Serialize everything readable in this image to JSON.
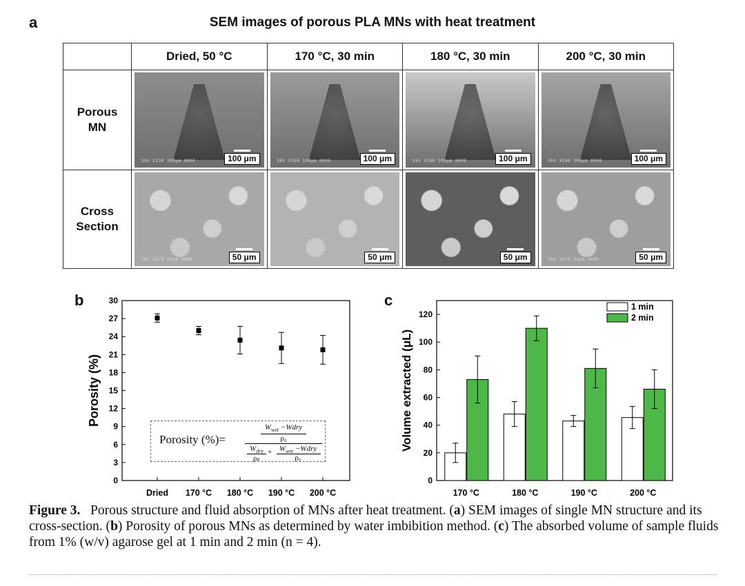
{
  "panel_a": {
    "letter": "a",
    "title": "SEM images of porous PLA MNs with heat treatment",
    "columns": [
      "Dried, 50 °C",
      "170 °C, 30 min",
      "180 °C, 30 min",
      "200 °C, 30 min"
    ],
    "rows": [
      {
        "label_line1": "Porous",
        "label_line2": "MN",
        "scale": "100 μm",
        "micro": [
          "5kV  X130 100μm 0000",
          "5kV  X100 100μm 0000",
          "5kV  X100 100μm 0000",
          "5kV  X140 100μm 0000"
        ]
      },
      {
        "label_line1": "Cross",
        "label_line2": "Section",
        "scale": "50 μm",
        "micro": [
          "5kV  X370 50μm 0000",
          "",
          "",
          "5kV  X370 50μm 0000"
        ]
      }
    ],
    "image_tones": [
      [
        "#8d8d8d",
        "#9a9a9a",
        "#c9c9c9",
        "#a5a5a5"
      ],
      [
        "#a8a8a8",
        "#b3b3b3",
        "#5e5e5e",
        "#9e9e9e"
      ]
    ]
  },
  "panel_b": {
    "letter": "b",
    "formula": {
      "prefix": "Porosity (%)=",
      "num_top": "W",
      "num_top_sub": "wet",
      "num_top_rest": " −Wdry",
      "rho0": "ρ₀",
      "den_left": "W",
      "den_left_sub": "dry",
      "rhop": "ρₚ",
      "plus": "+"
    }
  },
  "panel_c": {
    "letter": "c"
  },
  "chart_data": [
    {
      "type": "scatter",
      "title": "",
      "xlabel": "",
      "ylabel": "Porosity (%)",
      "categories": [
        "Dried",
        "170 °C",
        "180 °C",
        "190 °C",
        "200 °C"
      ],
      "values": [
        27.1,
        25.0,
        23.4,
        22.1,
        21.8
      ],
      "errors": [
        0.7,
        0.7,
        2.3,
        2.6,
        2.4
      ],
      "ylim": [
        0,
        30
      ],
      "yticks": [
        "0",
        "3",
        "6",
        "9",
        "12",
        "15",
        "18",
        "21",
        "24",
        "27",
        "30"
      ]
    },
    {
      "type": "bar",
      "title": "",
      "xlabel": "",
      "ylabel": "Volume extracted (μL)",
      "categories": [
        "170 °C",
        "180 °C",
        "190 °C",
        "200 °C"
      ],
      "series": [
        {
          "name": "1 min",
          "values": [
            20,
            48,
            43,
            45.5
          ],
          "errors": [
            7,
            9,
            4,
            8
          ],
          "color": "#ffffff"
        },
        {
          "name": "2 min",
          "values": [
            73,
            110,
            81,
            66
          ],
          "errors": [
            17,
            9,
            14,
            14
          ],
          "color": "#4db848"
        }
      ],
      "ylim": [
        0,
        130
      ],
      "yticks": [
        "0",
        "20",
        "40",
        "60",
        "80",
        "100",
        "120"
      ],
      "legend": "top-right"
    }
  ],
  "caption": {
    "label": "Figure 3.",
    "intro": "Porous structure and fluid absorption of MNs after heat treatment. (",
    "a": "a",
    "after_a": ") SEM images of single MN structure and its cross-section. (",
    "b": "b",
    "after_b": ") Porosity of porous MNs as determined by water imbibition method. (",
    "c": "c",
    "after_c": ") The absorbed volume of sample fluids from 1% (w/v) agarose gel at 1 min and 2 min (n = 4)."
  }
}
